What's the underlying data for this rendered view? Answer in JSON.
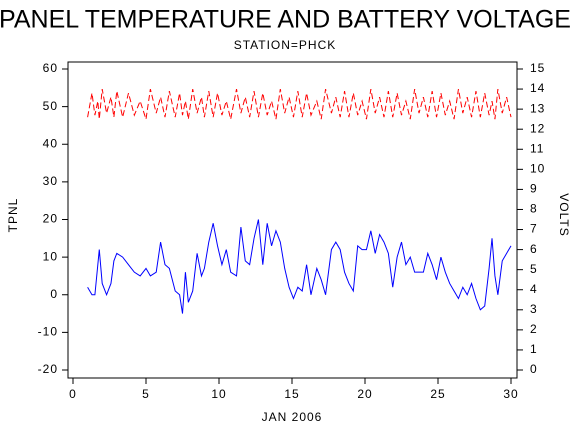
{
  "chart_data": {
    "type": "line",
    "title": "PANEL TEMPERATURE AND BATTERY VOLTAGE",
    "subtitle": "STATION=PHCK",
    "x_label": "JAN 2006",
    "y_label": "TPNL",
    "y2_label": "VOLTS",
    "x": [
      1,
      1.3,
      1.5,
      1.7,
      1.8,
      2.0,
      2.3,
      2.6,
      2.8,
      3.0,
      3.4,
      3.8,
      4.2,
      4.6,
      5.0,
      5.3,
      5.7,
      6.0,
      6.3,
      6.6,
      7.0,
      7.3,
      7.5,
      7.7,
      7.9,
      8.2,
      8.5,
      8.8,
      9.0,
      9.3,
      9.6,
      9.9,
      10.2,
      10.5,
      10.8,
      11.2,
      11.5,
      11.8,
      12.1,
      12.4,
      12.7,
      13.0,
      13.3,
      13.6,
      13.9,
      14.2,
      14.5,
      14.8,
      15.1,
      15.4,
      15.7,
      16.0,
      16.3,
      16.7,
      17.0,
      17.3,
      17.7,
      18.0,
      18.3,
      18.6,
      18.9,
      19.2,
      19.5,
      19.8,
      20.1,
      20.4,
      20.7,
      21.0,
      21.3,
      21.6,
      21.9,
      22.2,
      22.5,
      22.8,
      23.1,
      23.4,
      23.7,
      24.0,
      24.3,
      24.6,
      24.9,
      25.2,
      25.5,
      25.8,
      26.1,
      26.4,
      26.7,
      27.0,
      27.3,
      27.6,
      27.9,
      28.2,
      28.5,
      28.7,
      28.9,
      29.1,
      29.4,
      29.7,
      30.0
    ],
    "series": [
      {
        "name": "TPNL",
        "color": "#0000ff",
        "axis": "y",
        "values": [
          2,
          0,
          0,
          8,
          12,
          3,
          0,
          3,
          9,
          11,
          10,
          8,
          6,
          5,
          7,
          5,
          6,
          14,
          8,
          7,
          1,
          0,
          -5,
          6,
          -2,
          1,
          11,
          5,
          7,
          14,
          19,
          13,
          8,
          12,
          6,
          5,
          18,
          9,
          8,
          15,
          20,
          8,
          19,
          13,
          17,
          14,
          7,
          2,
          -1,
          2,
          1,
          8,
          0,
          7,
          4,
          0,
          12,
          14,
          12,
          6,
          3,
          1,
          13,
          12,
          12,
          17,
          11,
          16,
          14,
          11,
          2,
          10,
          14,
          8,
          10,
          6,
          6,
          6,
          11,
          8,
          4,
          10,
          6,
          3,
          1,
          -1,
          2,
          0,
          3,
          -1,
          -4,
          -3,
          7,
          15,
          5,
          0,
          9,
          11,
          13
        ]
      },
      {
        "name": "VOLTS",
        "color": "#ff0000",
        "axis": "y2",
        "values": [
          12.6,
          13.8,
          12.7,
          13.4,
          12.5,
          14.0,
          12.8,
          13.6,
          12.6,
          13.9,
          12.6,
          13.8,
          12.7,
          13.4,
          12.5,
          14.0,
          12.8,
          13.6,
          12.6,
          13.9,
          12.6,
          13.8,
          12.7,
          13.4,
          12.5,
          14.0,
          12.8,
          13.6,
          12.6,
          13.9,
          12.6,
          13.8,
          12.7,
          13.4,
          12.5,
          14.0,
          12.8,
          13.6,
          12.6,
          13.9,
          12.6,
          13.8,
          12.7,
          13.4,
          12.5,
          14.0,
          12.8,
          13.6,
          12.6,
          13.9,
          12.6,
          13.8,
          12.7,
          13.4,
          12.5,
          14.0,
          12.8,
          13.6,
          12.6,
          13.9,
          12.6,
          13.8,
          12.7,
          13.4,
          12.5,
          14.0,
          12.8,
          13.6,
          12.6,
          13.9,
          12.6,
          13.8,
          12.7,
          13.4,
          12.5,
          14.0,
          12.8,
          13.6,
          12.6,
          13.9,
          12.6,
          13.8,
          12.7,
          13.4,
          12.5,
          14.0,
          12.8,
          13.6,
          12.6,
          13.9,
          12.6,
          13.8,
          12.7,
          13.4,
          12.5,
          14.0,
          12.8,
          13.6,
          12.6
        ]
      }
    ],
    "xlim": [
      0,
      30
    ],
    "xticks": [
      0,
      5,
      10,
      15,
      20,
      25,
      30
    ],
    "ylim": [
      -20,
      60
    ],
    "yticks": [
      -20,
      -10,
      0,
      10,
      20,
      30,
      40,
      50,
      60
    ],
    "y2lim": [
      0,
      15
    ],
    "y2ticks": [
      0,
      1,
      2,
      3,
      4,
      5,
      6,
      7,
      8,
      9,
      10,
      11,
      12,
      13,
      14,
      15
    ]
  }
}
